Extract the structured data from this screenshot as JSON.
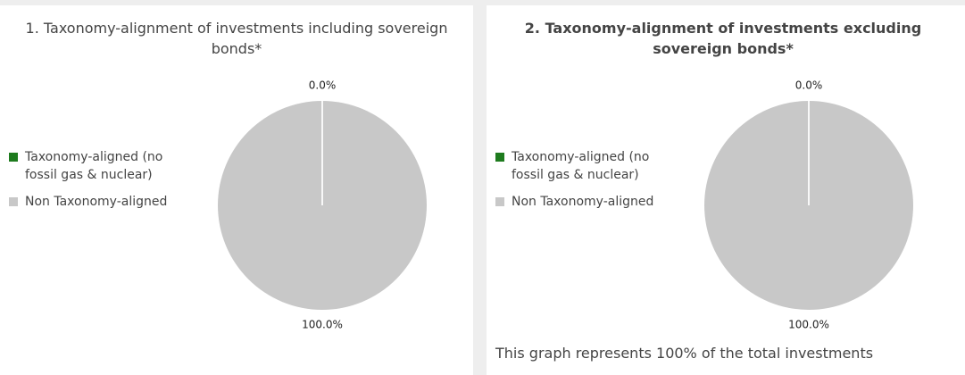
{
  "chart_data": [
    {
      "type": "pie",
      "title": "1. Taxonomy-alignment of investments including sovereign bonds*",
      "categories": [
        "Taxonomy-aligned (no fossil gas & nuclear)",
        "Non Taxonomy-aligned"
      ],
      "values": [
        0,
        100
      ],
      "value_labels": [
        "0.0%",
        "100.0%"
      ],
      "colors": [
        "#1e7b1e",
        "#c8c8c8"
      ]
    },
    {
      "type": "pie",
      "title": "2. Taxonomy-alignment of investments excluding sovereign bonds*",
      "categories": [
        "Taxonomy-aligned (no fossil gas & nuclear)",
        "Non Taxonomy-aligned"
      ],
      "values": [
        0,
        100
      ],
      "value_labels": [
        "0.0%",
        "100.0%"
      ],
      "colors": [
        "#1e7b1e",
        "#c8c8c8"
      ],
      "note": "This graph represents 100% of the total investments"
    }
  ]
}
